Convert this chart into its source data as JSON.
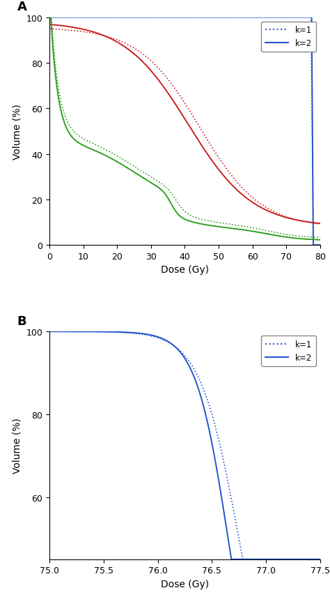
{
  "panel_A": {
    "title": "A",
    "xlabel": "Dose (Gy)",
    "ylabel": "Volume (%)",
    "xlim": [
      0,
      80
    ],
    "ylim": [
      0,
      100
    ],
    "xticks": [
      0,
      10,
      20,
      30,
      40,
      50,
      60,
      70,
      80
    ],
    "yticks": [
      0,
      20,
      40,
      60,
      80,
      100
    ],
    "legend_k1_label": "k=1",
    "legend_k2_label": "k=2",
    "blue_color": "#2255CC",
    "red_color": "#CC2020",
    "green_color": "#2EA020"
  },
  "panel_B": {
    "title": "B",
    "xlabel": "Dose (Gy)",
    "ylabel": "Volume (%)",
    "xlim": [
      75,
      77.5
    ],
    "ylim": [
      45,
      100
    ],
    "xticks": [
      75,
      75.5,
      76,
      76.5,
      77,
      77.5
    ],
    "yticks": [
      60,
      80,
      100
    ],
    "legend_k1_label": "k=1",
    "legend_k2_label": "k=2",
    "blue_color": "#2255CC"
  }
}
